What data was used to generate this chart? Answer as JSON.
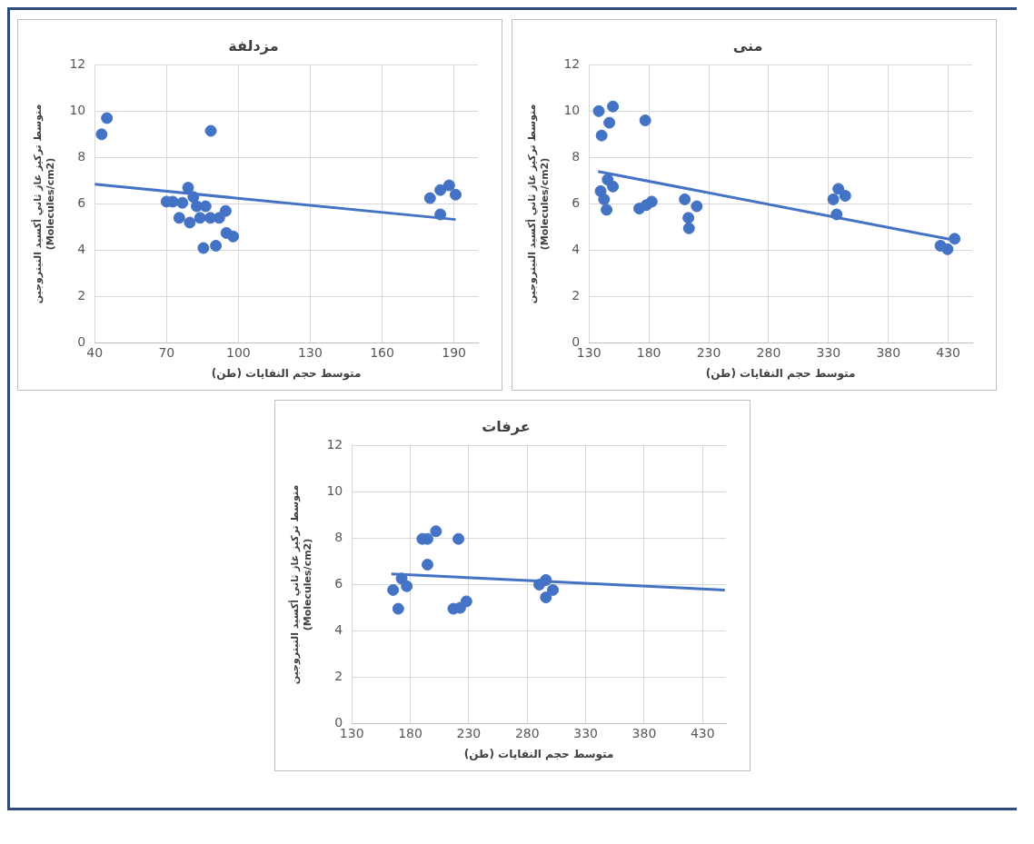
{
  "chart_data": [
    {
      "type": "scatter",
      "title": "مزدلفة",
      "xlabel": "متوسط حجم النفايات (طن)",
      "ylabel": "متوسط تركيز غاز ثاني أكسيد النيتروجين (Molecules/cm2)",
      "xlim": [
        40,
        200
      ],
      "xticks": [
        40,
        70,
        100,
        130,
        160,
        190
      ],
      "ylim": [
        0,
        12
      ],
      "yticks": [
        0,
        2,
        4,
        6,
        8,
        10,
        12
      ],
      "grid": true,
      "series": [
        {
          "color": "#4472c4",
          "marker": "circle",
          "x": [
            42.9,
            45.1,
            88.5,
            70,
            72.6,
            75.3,
            79,
            79.7,
            81.2,
            82.6,
            84,
            86.3,
            85.4,
            90.6,
            88.3,
            92,
            94.7,
            95,
            97.8,
            76.6,
            180,
            184.3,
            184.3,
            188,
            190.7
          ],
          "values": [
            9.0,
            9.7,
            9.15,
            6.1,
            6.1,
            5.4,
            6.7,
            5.2,
            6.3,
            5.9,
            5.4,
            5.9,
            4.1,
            4.2,
            5.4,
            5.4,
            5.7,
            4.75,
            4.6,
            6.05,
            6.25,
            5.55,
            6.6,
            6.8,
            6.4
          ]
        },
        {
          "type": "line",
          "color": "#4472c4",
          "x": [
            40,
            190.7
          ],
          "values": [
            6.85,
            5.33
          ]
        }
      ]
    },
    {
      "type": "scatter",
      "title": "منى",
      "xlabel": "متوسط حجم النفايات (طن)",
      "ylabel": "متوسط تركيز غاز ثاني أكسيد النيتروجين (Molecules/cm2)",
      "xlim": [
        130,
        450
      ],
      "xticks": [
        130,
        180,
        230,
        280,
        330,
        380,
        430
      ],
      "ylim": [
        0,
        12
      ],
      "yticks": [
        0,
        2,
        4,
        6,
        8,
        10,
        12
      ],
      "grid": true,
      "series": [
        {
          "color": "#4472c4",
          "marker": "circle",
          "x": [
            138.2,
            150,
            147,
            140.6,
            177,
            139.7,
            150,
            145.6,
            142.6,
            144.7,
            172,
            177.9,
            182.4,
            210,
            220,
            213,
            213.5,
            334,
            338.2,
            344,
            336.8,
            423.5,
            429.4,
            435.3
          ],
          "values": [
            10.0,
            10.2,
            9.5,
            8.95,
            9.6,
            6.55,
            6.75,
            7.05,
            6.2,
            5.75,
            5.8,
            5.95,
            6.1,
            6.2,
            5.9,
            5.4,
            4.95,
            6.2,
            6.65,
            6.35,
            5.55,
            4.2,
            4.05,
            4.5
          ]
        },
        {
          "type": "line",
          "color": "#4472c4",
          "x": [
            137.6,
            430.9
          ],
          "values": [
            7.4,
            4.48
          ]
        }
      ]
    },
    {
      "type": "scatter",
      "title": "عرفات",
      "xlabel": "متوسط حجم النفايات (طن)",
      "ylabel": "متوسط تركيز غاز ثاني أكسيد النيتروجين (Molecules/cm2)",
      "xlim": [
        130,
        450
      ],
      "xticks": [
        130,
        180,
        230,
        280,
        330,
        380,
        430
      ],
      "ylim": [
        0,
        12
      ],
      "yticks": [
        0,
        2,
        4,
        6,
        8,
        10,
        12
      ],
      "grid": true,
      "series": [
        {
          "color": "#4472c4",
          "marker": "circle",
          "x": [
            165.3,
            169.7,
            172.6,
            177,
            190.3,
            194.7,
            202,
            194.7,
            221.2,
            216.8,
            222.6,
            228,
            290.3,
            296,
            296,
            302
          ],
          "values": [
            5.77,
            4.96,
            6.26,
            5.93,
            7.97,
            7.97,
            8.3,
            6.86,
            7.97,
            4.96,
            5.0,
            5.28,
            6.0,
            6.2,
            5.45,
            5.77
          ]
        },
        {
          "type": "line",
          "color": "#4472c4",
          "x": [
            163.8,
            449
          ],
          "values": [
            6.46,
            5.77
          ]
        }
      ]
    }
  ]
}
